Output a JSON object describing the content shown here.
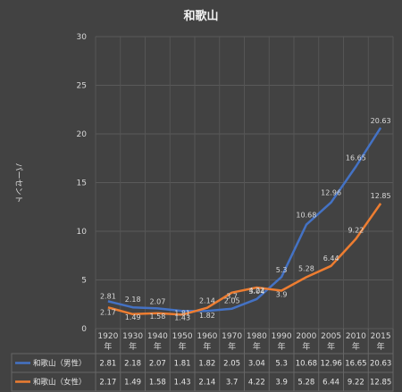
{
  "chart_data": {
    "type": "line",
    "title": "和歌山",
    "ylabel": "パーセント",
    "xlabel": "",
    "ylim": [
      0,
      30
    ],
    "yticks": [
      0,
      5,
      10,
      15,
      20,
      25,
      30
    ],
    "grid": true,
    "legend": "table-below",
    "categories": [
      "1920",
      "1930",
      "1940",
      "1950",
      "1960",
      "1970",
      "1980",
      "1990",
      "2000",
      "2005",
      "2010",
      "2015"
    ],
    "category_suffix": "年",
    "series": [
      {
        "name": "和歌山（男性）",
        "color": "#4472c4",
        "values": [
          2.81,
          2.18,
          2.07,
          1.81,
          1.82,
          2.05,
          3.04,
          5.3,
          10.68,
          12.96,
          16.65,
          20.63
        ]
      },
      {
        "name": "和歌山（女性）",
        "color": "#ed7d31",
        "values": [
          2.17,
          1.49,
          1.58,
          1.43,
          2.14,
          3.7,
          4.22,
          3.9,
          5.28,
          6.44,
          9.22,
          12.85
        ]
      }
    ]
  }
}
